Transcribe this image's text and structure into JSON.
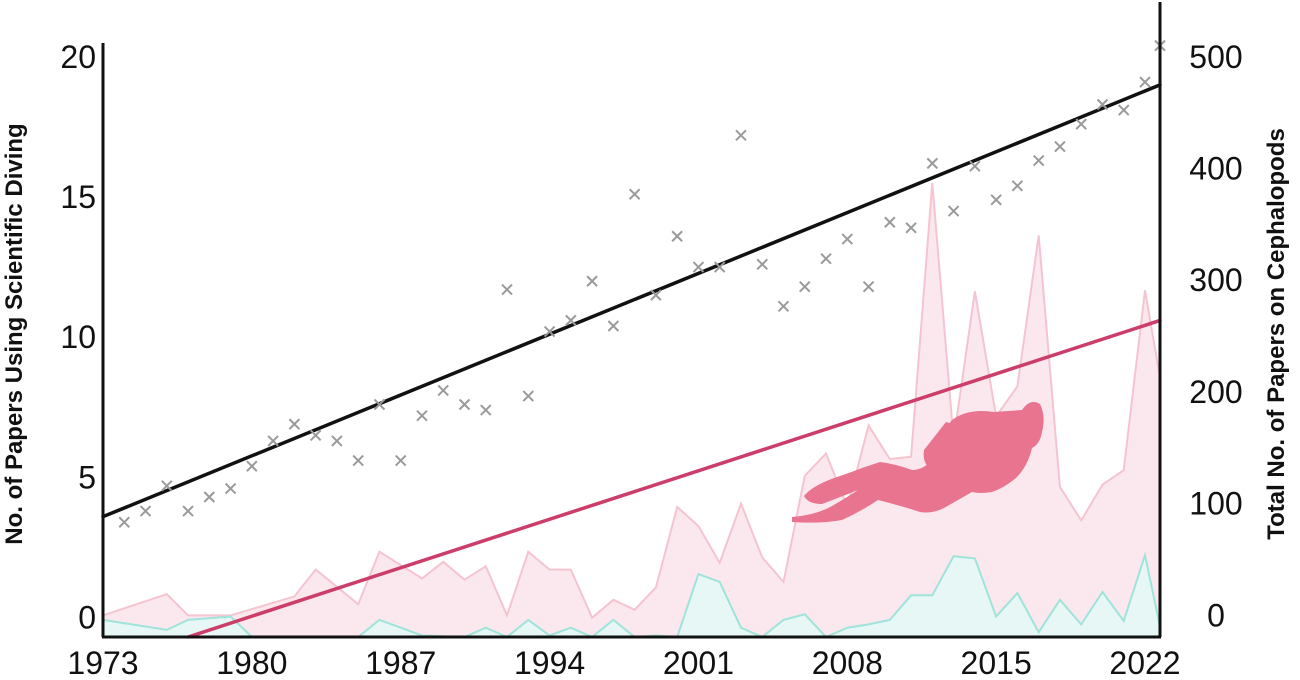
{
  "chart_data": {
    "type": "area",
    "xlabel": "",
    "ylabel_left": "No. of Papers Using Scientific Diving",
    "ylabel_right": "Total No. of Papers on Cephalopods",
    "x_ticks": [
      1973,
      1980,
      1987,
      1994,
      2001,
      2008,
      2015,
      2022
    ],
    "y_left_ticks": [
      0,
      5,
      10,
      15,
      20
    ],
    "y_right_ticks": [
      0,
      100,
      200,
      300,
      400,
      500
    ],
    "xlim": [
      1973,
      2022
    ],
    "ylim_left": [
      -0.8,
      20.6
    ],
    "ylim_right": [
      -22,
      515
    ],
    "grid": false,
    "legend": "none",
    "series": [
      {
        "axis": "right",
        "style": "area",
        "color": "#f4c4d0",
        "fill": "#fbe8ee",
        "points": [
          [
            1973,
            0
          ],
          [
            1976,
            19
          ],
          [
            1977,
            0
          ],
          [
            1979,
            0
          ],
          [
            1982,
            17
          ],
          [
            1983,
            41
          ],
          [
            1985,
            10
          ],
          [
            1986,
            57
          ],
          [
            1988,
            33
          ],
          [
            1989,
            48
          ],
          [
            1990,
            32
          ],
          [
            1991,
            44
          ],
          [
            1992,
            0
          ],
          [
            1993,
            57
          ],
          [
            1994,
            41
          ],
          [
            1995,
            41
          ],
          [
            1996,
            -2
          ],
          [
            1997,
            14
          ],
          [
            1998,
            5
          ],
          [
            1999,
            25
          ],
          [
            2000,
            97
          ],
          [
            2001,
            80
          ],
          [
            2002,
            47
          ],
          [
            2003,
            100
          ],
          [
            2004,
            52
          ],
          [
            2005,
            30
          ],
          [
            2006,
            125
          ],
          [
            2007,
            145
          ],
          [
            2008,
            97
          ],
          [
            2009,
            170
          ],
          [
            2010,
            140
          ],
          [
            2011,
            142
          ],
          [
            2012,
            387
          ],
          [
            2013,
            157
          ],
          [
            2014,
            290
          ],
          [
            2015,
            178
          ],
          [
            2016,
            205
          ],
          [
            2017,
            340
          ],
          [
            2018,
            115
          ],
          [
            2019,
            85
          ],
          [
            2020,
            117
          ],
          [
            2021,
            130
          ],
          [
            2022,
            291
          ],
          [
            2023,
            213
          ]
        ]
      },
      {
        "axis": "right",
        "style": "area",
        "color": "#9fe3da",
        "fill": "#e6f7f5",
        "points": [
          [
            1973,
            -4
          ],
          [
            1976,
            -13
          ],
          [
            1977,
            -4
          ],
          [
            1979,
            -1
          ],
          [
            1980,
            -25
          ],
          [
            1982,
            -25
          ],
          [
            1983,
            -20
          ],
          [
            1985,
            -20
          ],
          [
            1986,
            -4
          ],
          [
            1988,
            -18
          ],
          [
            1990,
            -22
          ],
          [
            1991,
            -11
          ],
          [
            1992,
            -26
          ],
          [
            1993,
            -4
          ],
          [
            1994,
            -18
          ],
          [
            1995,
            -11
          ],
          [
            1996,
            -26
          ],
          [
            1997,
            -4
          ],
          [
            1998,
            -20
          ],
          [
            1999,
            -18
          ],
          [
            2000,
            -25
          ],
          [
            2001,
            37
          ],
          [
            2002,
            30
          ],
          [
            2003,
            -11
          ],
          [
            2004,
            -26
          ],
          [
            2005,
            -4
          ],
          [
            2006,
            1
          ],
          [
            2007,
            -26
          ],
          [
            2008,
            -11
          ],
          [
            2009,
            -8
          ],
          [
            2010,
            -4
          ],
          [
            2011,
            18
          ],
          [
            2012,
            18
          ],
          [
            2013,
            53
          ],
          [
            2014,
            51
          ],
          [
            2015,
            -1
          ],
          [
            2016,
            20
          ],
          [
            2017,
            -15
          ],
          [
            2018,
            14
          ],
          [
            2019,
            -8
          ],
          [
            2020,
            21
          ],
          [
            2021,
            -5
          ],
          [
            2022,
            54
          ],
          [
            2023,
            -10
          ]
        ]
      },
      {
        "axis": "left",
        "style": "scatter",
        "color": "#9a9a9a",
        "points": [
          [
            1974,
            3.4
          ],
          [
            1975,
            3.8
          ],
          [
            1976,
            4.7
          ],
          [
            1977,
            3.8
          ],
          [
            1978,
            4.3
          ],
          [
            1979,
            4.6
          ],
          [
            1980,
            5.4
          ],
          [
            1981,
            6.3
          ],
          [
            1982,
            6.9
          ],
          [
            1983,
            6.5
          ],
          [
            1984,
            6.3
          ],
          [
            1985,
            5.6
          ],
          [
            1986,
            7.6
          ],
          [
            1987,
            5.6
          ],
          [
            1988,
            7.2
          ],
          [
            1989,
            8.1
          ],
          [
            1990,
            7.6
          ],
          [
            1991,
            7.4
          ],
          [
            1992,
            11.7
          ],
          [
            1993,
            7.9
          ],
          [
            1994,
            10.2
          ],
          [
            1995,
            10.6
          ],
          [
            1996,
            12.0
          ],
          [
            1997,
            10.4
          ],
          [
            1998,
            15.1
          ],
          [
            1999,
            11.5
          ],
          [
            2000,
            13.6
          ],
          [
            2001,
            12.5
          ],
          [
            2002,
            12.5
          ],
          [
            2003,
            17.2
          ],
          [
            2004,
            12.6
          ],
          [
            2005,
            11.1
          ],
          [
            2006,
            11.8
          ],
          [
            2007,
            12.8
          ],
          [
            2008,
            13.5
          ],
          [
            2009,
            11.8
          ],
          [
            2010,
            14.1
          ],
          [
            2011,
            13.9
          ],
          [
            2012,
            16.2
          ],
          [
            2013,
            14.5
          ],
          [
            2014,
            16.1
          ],
          [
            2015,
            14.9
          ],
          [
            2016,
            15.4
          ],
          [
            2017,
            16.3
          ],
          [
            2018,
            16.8
          ],
          [
            2019,
            17.6
          ],
          [
            2020,
            18.3
          ],
          [
            2021,
            18.1
          ],
          [
            2022,
            19.1
          ],
          [
            2023,
            20.4
          ]
        ]
      }
    ],
    "trendlines": [
      {
        "axis": "left",
        "color": "#111111",
        "from": [
          1973,
          3.6
        ],
        "to": [
          2023,
          19.0
        ]
      },
      {
        "axis": "right",
        "color": "#cc3d6a",
        "from": [
          1977,
          -22
        ],
        "to": [
          2023,
          264
        ]
      }
    ]
  },
  "icon": {
    "name": "scuba-diver-icon",
    "color": "#e8748f"
  }
}
